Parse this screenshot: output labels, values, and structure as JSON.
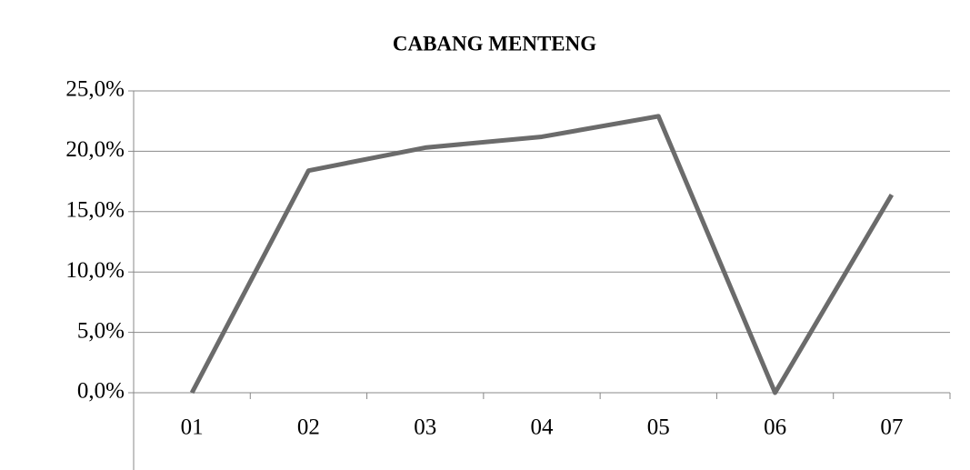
{
  "chart_data": {
    "type": "line",
    "title": "CABANG MENTENG",
    "categories": [
      "01",
      "02",
      "03",
      "04",
      "05",
      "06",
      "07"
    ],
    "values": [
      0,
      18.4,
      20.3,
      21.2,
      22.9,
      0,
      16.4
    ],
    "color": "#6b6b6b",
    "ylim": [
      0,
      25
    ],
    "yticks": [
      {
        "value": 0,
        "label": "0,0%"
      },
      {
        "value": 5,
        "label": "5,0%"
      },
      {
        "value": 10,
        "label": "10,0%"
      },
      {
        "value": 15,
        "label": "15,0%"
      },
      {
        "value": 20,
        "label": "20,0%"
      },
      {
        "value": 25,
        "label": "25,0%"
      }
    ],
    "grid": true
  }
}
